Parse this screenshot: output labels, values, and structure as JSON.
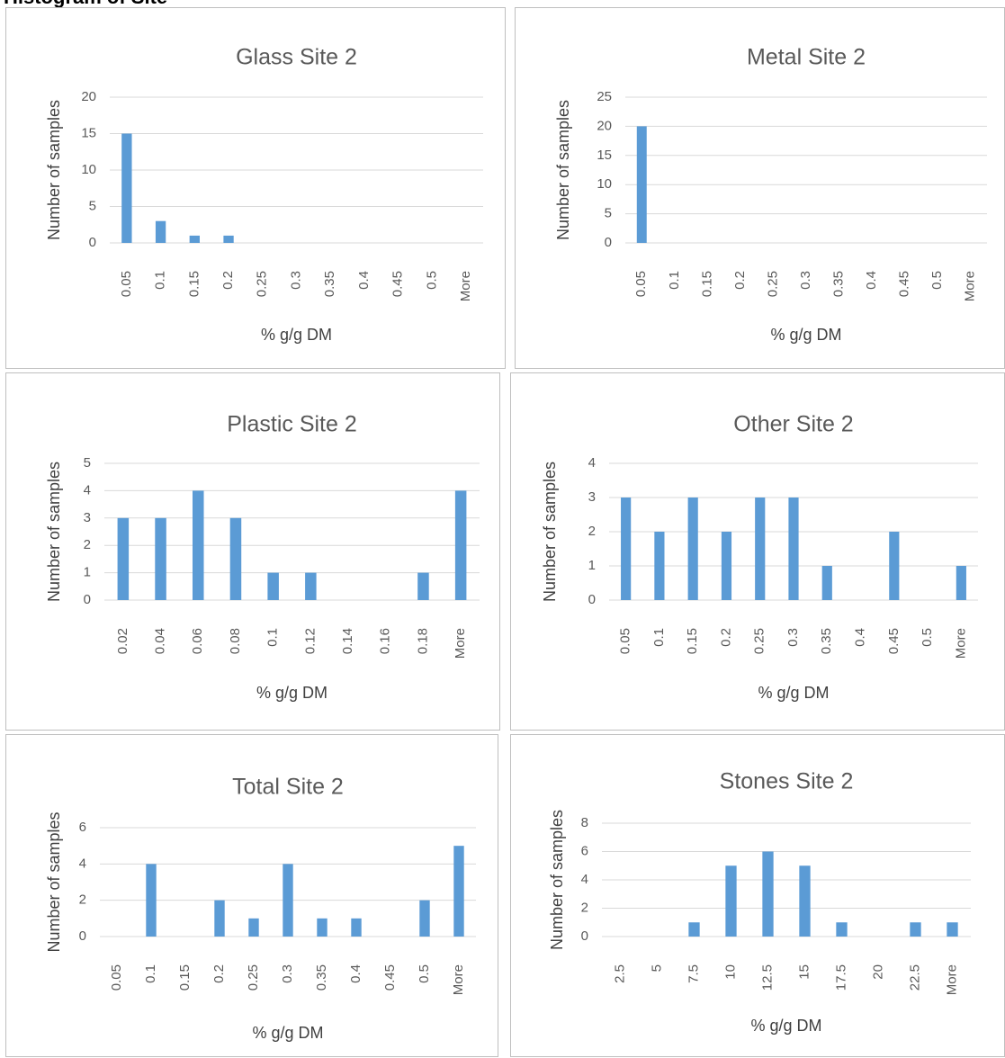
{
  "heading": "Histogram of Site",
  "chart_data": [
    {
      "type": "bar",
      "title": "Glass Site 2",
      "xlabel": "% g/g DM",
      "ylabel": "Number of samples",
      "categories": [
        "0.05",
        "0.1",
        "0.15",
        "0.2",
        "0.25",
        "0.3",
        "0.35",
        "0.4",
        "0.45",
        "0.5",
        "More"
      ],
      "values": [
        15,
        3,
        1,
        1,
        0,
        0,
        0,
        0,
        0,
        0,
        0
      ],
      "ylim": [
        0,
        20
      ],
      "yticks": [
        0,
        5,
        10,
        15,
        20
      ],
      "grid": true,
      "color": "#5b9bd5"
    },
    {
      "type": "bar",
      "title": "Metal Site 2",
      "xlabel": "% g/g DM",
      "ylabel": "Number of samples",
      "categories": [
        "0.05",
        "0.1",
        "0.15",
        "0.2",
        "0.25",
        "0.3",
        "0.35",
        "0.4",
        "0.45",
        "0.5",
        "More"
      ],
      "values": [
        20,
        0,
        0,
        0,
        0,
        0,
        0,
        0,
        0,
        0,
        0
      ],
      "ylim": [
        0,
        25
      ],
      "yticks": [
        0,
        5,
        10,
        15,
        20,
        25
      ],
      "grid": true,
      "color": "#5b9bd5"
    },
    {
      "type": "bar",
      "title": "Plastic Site 2",
      "xlabel": "% g/g DM",
      "ylabel": "Number of samples",
      "categories": [
        "0.02",
        "0.04",
        "0.06",
        "0.08",
        "0.1",
        "0.12",
        "0.14",
        "0.16",
        "0.18",
        "More"
      ],
      "values": [
        3,
        3,
        4,
        3,
        1,
        1,
        0,
        0,
        1,
        4
      ],
      "ylim": [
        0,
        5
      ],
      "yticks": [
        0,
        1,
        2,
        3,
        4,
        5
      ],
      "grid": true,
      "color": "#5b9bd5"
    },
    {
      "type": "bar",
      "title": "Other Site 2",
      "xlabel": "% g/g DM",
      "ylabel": "Number of samples",
      "categories": [
        "0.05",
        "0.1",
        "0.15",
        "0.2",
        "0.25",
        "0.3",
        "0.35",
        "0.4",
        "0.45",
        "0.5",
        "More"
      ],
      "values": [
        3,
        2,
        3,
        2,
        3,
        3,
        1,
        0,
        2,
        0,
        1
      ],
      "ylim": [
        0,
        4
      ],
      "yticks": [
        0,
        1,
        2,
        3,
        4
      ],
      "grid": true,
      "color": "#5b9bd5"
    },
    {
      "type": "bar",
      "title": "Total Site 2",
      "xlabel": "% g/g DM",
      "ylabel": "Number of samples",
      "categories": [
        "0.05",
        "0.1",
        "0.15",
        "0.2",
        "0.25",
        "0.3",
        "0.35",
        "0.4",
        "0.45",
        "0.5",
        "More"
      ],
      "values": [
        0,
        4,
        0,
        2,
        1,
        4,
        1,
        1,
        0,
        2,
        5
      ],
      "ylim": [
        0,
        6
      ],
      "yticks": [
        0,
        2,
        4,
        6
      ],
      "grid": true,
      "color": "#5b9bd5"
    },
    {
      "type": "bar",
      "title": "Stones Site 2",
      "xlabel": "% g/g DM",
      "ylabel": "Number of samples",
      "categories": [
        "2.5",
        "5",
        "7.5",
        "10",
        "12.5",
        "15",
        "17.5",
        "20",
        "22.5",
        "More"
      ],
      "values": [
        0,
        0,
        1,
        5,
        6,
        5,
        1,
        0,
        1,
        1
      ],
      "ylim": [
        0,
        8
      ],
      "yticks": [
        0,
        2,
        4,
        6,
        8
      ],
      "grid": true,
      "color": "#5b9bd5"
    }
  ]
}
